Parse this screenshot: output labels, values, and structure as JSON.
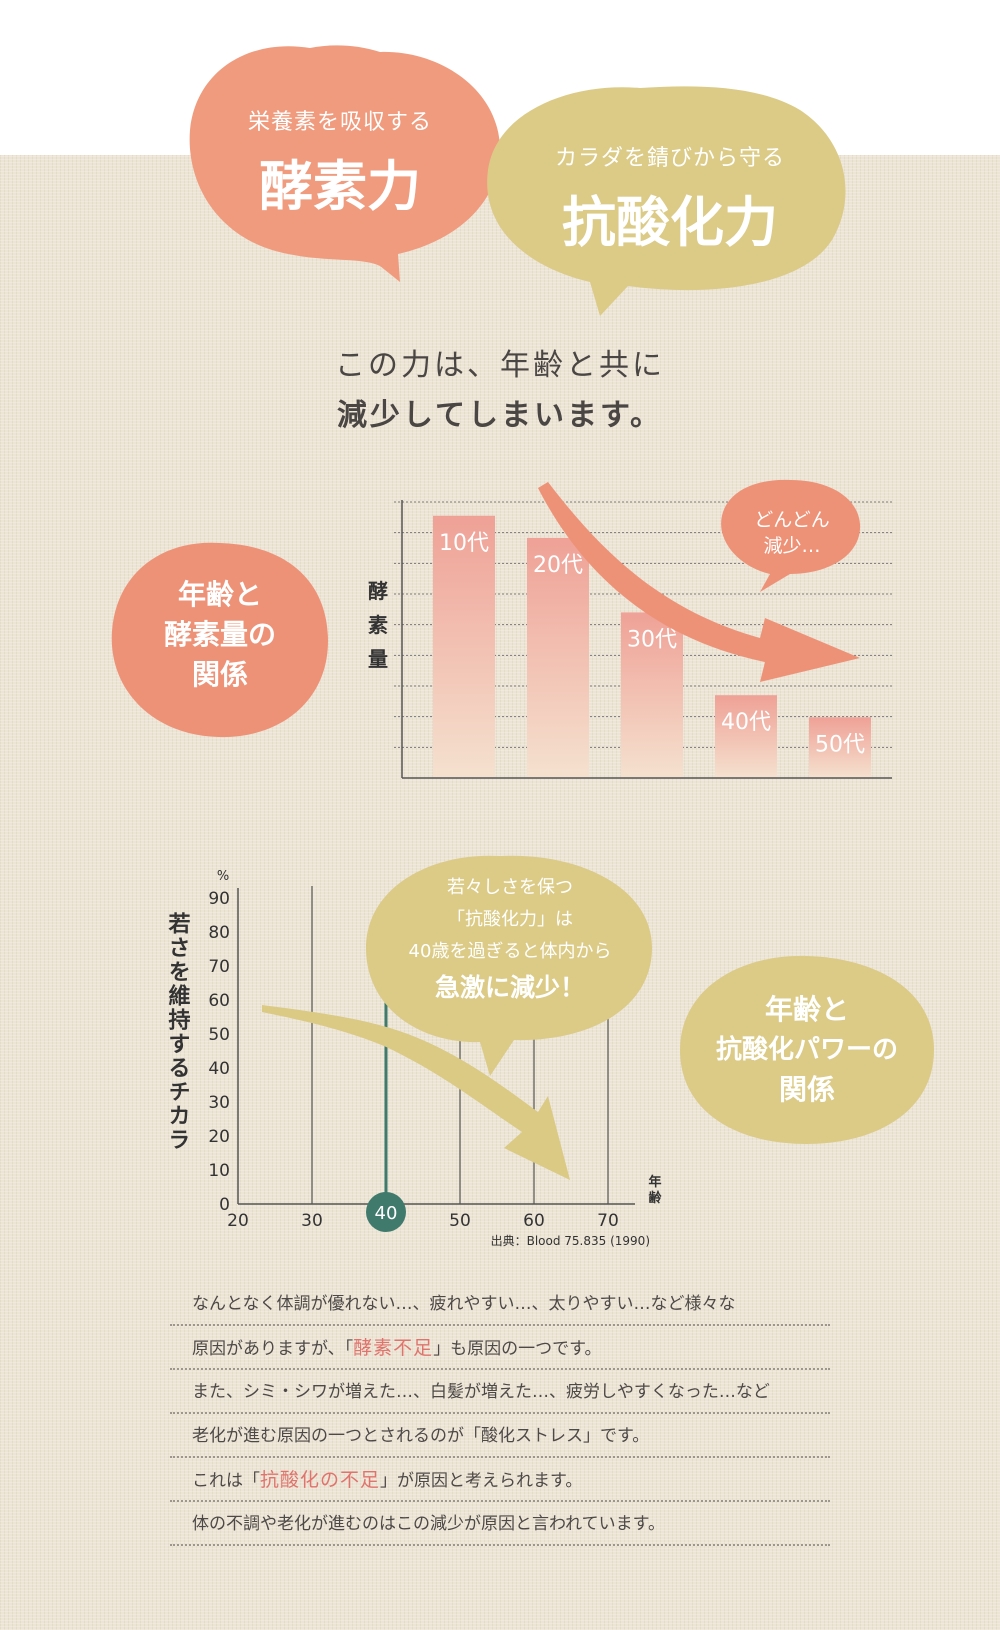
{
  "bubbles": {
    "enzyme": {
      "sub": "栄養素を吸収する",
      "main": "酵素力"
    },
    "antioxidant": {
      "sub": "カラダを錆びから守る",
      "main": "抗酸化力"
    }
  },
  "headline": {
    "line1": "この力は、年齢と共に",
    "line2": "減少してしまいます。"
  },
  "chart1_label": [
    "年齢と",
    "酵素量の",
    "関係"
  ],
  "chart1_callout": [
    "どんどん",
    "減少…"
  ],
  "chart2_label": [
    "年齢と",
    "抗酸化パワーの",
    "関係"
  ],
  "chart2_callout": {
    "lines": [
      "若々しさを保つ",
      "「抗酸化力」は",
      "40歳を過ぎると体内から"
    ],
    "emphasis": "急激に減少！"
  },
  "chart2_source": "出典：Blood 75.835 (1990)",
  "colors": {
    "salmon": "#f0987c",
    "khaki": "#dccb84",
    "teal": "#3f7a6c"
  },
  "chart_data": [
    {
      "type": "bar",
      "categories": [
        "10代",
        "20代",
        "30代",
        "40代",
        "50代"
      ],
      "values": [
        9.5,
        8.7,
        6.0,
        3.0,
        2.2
      ],
      "ylabel": "酵素量",
      "ylim": [
        0,
        10
      ],
      "grid": true,
      "trend_arrow": "decreasing"
    },
    {
      "type": "line",
      "x": [
        20,
        30,
        40,
        50,
        60,
        70
      ],
      "ylim": [
        0,
        90
      ],
      "xlim": [
        20,
        70
      ],
      "yticks": [
        "0",
        "10",
        "20",
        "30",
        "40",
        "50",
        "60",
        "70",
        "80",
        "90"
      ],
      "xticks": [
        "20",
        "30",
        "40",
        "50",
        "60",
        "70"
      ],
      "ylabel": "若さを維持するチカラ",
      "yunit": "%",
      "xlabel": "年齢",
      "highlight_x": 40,
      "highlight_label": "40",
      "trend_arrow": "decreasing"
    }
  ],
  "paragraph": [
    {
      "parts": [
        "なんとなく体調が優れない…、疲れやすい…、太りやすい…など様々な"
      ]
    },
    {
      "parts": [
        "原因がありますが、「",
        "酵素不足",
        "」も原因の一つです。"
      ]
    },
    {
      "parts": [
        "また、シミ・シワが増えた…、白髪が増えた…、疲労しやすくなった…など"
      ]
    },
    {
      "parts": [
        "老化が進む原因の一つとされるのが「酸化ストレス」です。"
      ]
    },
    {
      "parts": [
        "これは「",
        "抗酸化の不足",
        "」が原因と考えられます。"
      ]
    },
    {
      "parts": [
        "体の不調や老化が進むのはこの減少が原因と言われています。"
      ]
    }
  ]
}
